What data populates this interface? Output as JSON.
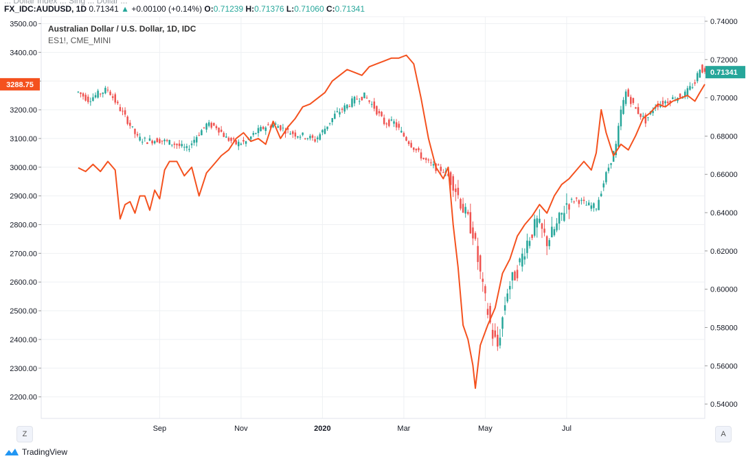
{
  "header": {
    "truncated_text": "... Dollar Index ... Sing ... Dollar ...",
    "symbol": "FX_IDC:AUDUSD, 1D",
    "last": "0.71341",
    "arrow": "▲",
    "change": "+0.00100 (+0.14%)",
    "o_label": "O:",
    "o_value": "0.71239",
    "h_label": "H:",
    "h_value": "0.71376",
    "l_label": "L:",
    "l_value": "0.71060",
    "c_label": "C:",
    "c_value": "0.71341"
  },
  "legend": {
    "title": "Australian Dollar / U.S. Dollar, 1D, IDC",
    "compare": "ES1!, CME_MINI"
  },
  "footer": {
    "brand": "TradingView",
    "left_button": "Z",
    "right_button": "A"
  },
  "colors": {
    "up": "#26a69a",
    "down": "#ef5350",
    "compare": "#f4511e",
    "grid": "#eef0f3"
  },
  "chart_data": {
    "type": "line",
    "x_ticks": [
      "Sep",
      "Nov",
      "2020",
      "Mar",
      "May",
      "Jul"
    ],
    "left_axis": {
      "ticks": [
        "3500.00",
        "3400.00",
        "3300.00",
        "3200.00",
        "3100.00",
        "3000.00",
        "2900.00",
        "2800.00",
        "2700.00",
        "2600.00",
        "2500.00",
        "2400.00",
        "2300.00",
        "2200.00"
      ],
      "range": [
        2125,
        3525
      ],
      "last_value_label": "3288.75"
    },
    "right_axis": {
      "ticks": [
        "0.74000",
        "0.72000",
        "0.70000",
        "0.68000",
        "0.66000",
        "0.64000",
        "0.62000",
        "0.60000",
        "0.58000",
        "0.56000",
        "0.54000"
      ],
      "range": [
        0.5325,
        0.7425
      ],
      "last_value_label": "0.71341"
    },
    "series": [
      {
        "name": "Australian Dollar / U.S. Dollar, 1D, IDC",
        "style": "candles",
        "axis": "right",
        "close_path": [
          [
            0,
            0.703
          ],
          [
            4,
            0.699
          ],
          [
            8,
            0.702
          ],
          [
            12,
            0.7045
          ],
          [
            16,
            0.696
          ],
          [
            20,
            0.688
          ],
          [
            24,
            0.679
          ],
          [
            28,
            0.6775
          ],
          [
            32,
            0.678
          ],
          [
            36,
            0.677
          ],
          [
            40,
            0.6755
          ],
          [
            44,
            0.673
          ],
          [
            48,
            0.68
          ],
          [
            52,
            0.686
          ],
          [
            56,
            0.685
          ],
          [
            60,
            0.679
          ],
          [
            64,
            0.676
          ],
          [
            68,
            0.677
          ],
          [
            72,
            0.682
          ],
          [
            76,
            0.685
          ],
          [
            80,
            0.686
          ],
          [
            84,
            0.683
          ],
          [
            88,
            0.681
          ],
          [
            92,
            0.68
          ],
          [
            96,
            0.678
          ],
          [
            100,
            0.684
          ],
          [
            104,
            0.691
          ],
          [
            108,
            0.695
          ],
          [
            112,
            0.699
          ],
          [
            116,
            0.701
          ],
          [
            120,
            0.695
          ],
          [
            124,
            0.687
          ],
          [
            128,
            0.687
          ],
          [
            132,
            0.68
          ],
          [
            136,
            0.674
          ],
          [
            140,
            0.668
          ],
          [
            144,
            0.664
          ],
          [
            148,
            0.662
          ],
          [
            152,
            0.656
          ],
          [
            156,
            0.642
          ],
          [
            160,
            0.63
          ],
          [
            164,
            0.6
          ],
          [
            168,
            0.576
          ],
          [
            170,
            0.57
          ],
          [
            174,
            0.6
          ],
          [
            178,
            0.61
          ],
          [
            182,
            0.625
          ],
          [
            186,
            0.635
          ],
          [
            190,
            0.625
          ],
          [
            194,
            0.633
          ],
          [
            198,
            0.645
          ],
          [
            202,
            0.647
          ],
          [
            206,
            0.644
          ],
          [
            210,
            0.643
          ],
          [
            214,
            0.66
          ],
          [
            218,
            0.675
          ],
          [
            220,
            0.693
          ],
          [
            222,
            0.703
          ],
          [
            226,
            0.694
          ],
          [
            230,
            0.688
          ],
          [
            234,
            0.696
          ],
          [
            238,
            0.698
          ],
          [
            242,
            0.7
          ],
          [
            246,
            0.702
          ],
          [
            250,
            0.708
          ],
          [
            252,
            0.716
          ],
          [
            254,
            0.713
          ]
        ]
      },
      {
        "name": "ES1!, CME_MINI",
        "style": "line",
        "axis": "left",
        "values": [
          [
            0,
            2998
          ],
          [
            3,
            2985
          ],
          [
            6,
            3010
          ],
          [
            9,
            2985
          ],
          [
            12,
            3020
          ],
          [
            15,
            2990
          ],
          [
            17,
            2820
          ],
          [
            19,
            2870
          ],
          [
            21,
            2880
          ],
          [
            23,
            2840
          ],
          [
            25,
            2900
          ],
          [
            27,
            2900
          ],
          [
            29,
            2850
          ],
          [
            31,
            2920
          ],
          [
            33,
            2890
          ],
          [
            35,
            2990
          ],
          [
            37,
            3020
          ],
          [
            40,
            3020
          ],
          [
            43,
            2970
          ],
          [
            46,
            3000
          ],
          [
            49,
            2900
          ],
          [
            52,
            2980
          ],
          [
            55,
            3010
          ],
          [
            58,
            3040
          ],
          [
            61,
            3060
          ],
          [
            64,
            3100
          ],
          [
            67,
            3120
          ],
          [
            70,
            3090
          ],
          [
            73,
            3100
          ],
          [
            76,
            3080
          ],
          [
            79,
            3160
          ],
          [
            82,
            3100
          ],
          [
            85,
            3140
          ],
          [
            88,
            3170
          ],
          [
            91,
            3210
          ],
          [
            94,
            3220
          ],
          [
            97,
            3240
          ],
          [
            100,
            3260
          ],
          [
            103,
            3300
          ],
          [
            106,
            3320
          ],
          [
            109,
            3340
          ],
          [
            112,
            3330
          ],
          [
            115,
            3320
          ],
          [
            118,
            3350
          ],
          [
            121,
            3360
          ],
          [
            124,
            3370
          ],
          [
            127,
            3380
          ],
          [
            130,
            3380
          ],
          [
            133,
            3390
          ],
          [
            136,
            3360
          ],
          [
            139,
            3240
          ],
          [
            142,
            3100
          ],
          [
            145,
            3000
          ],
          [
            148,
            2960
          ],
          [
            150,
            3000
          ],
          [
            152,
            2800
          ],
          [
            154,
            2650
          ],
          [
            156,
            2450
          ],
          [
            158,
            2400
          ],
          [
            160,
            2310
          ],
          [
            161,
            2230
          ],
          [
            163,
            2380
          ],
          [
            166,
            2450
          ],
          [
            169,
            2510
          ],
          [
            172,
            2630
          ],
          [
            175,
            2680
          ],
          [
            178,
            2760
          ],
          [
            181,
            2800
          ],
          [
            184,
            2830
          ],
          [
            187,
            2870
          ],
          [
            190,
            2840
          ],
          [
            193,
            2900
          ],
          [
            196,
            2940
          ],
          [
            199,
            2960
          ],
          [
            202,
            2990
          ],
          [
            205,
            3020
          ],
          [
            208,
            2990
          ],
          [
            210,
            3050
          ],
          [
            212,
            3200
          ],
          [
            214,
            3120
          ],
          [
            217,
            3040
          ],
          [
            220,
            3080
          ],
          [
            223,
            3060
          ],
          [
            226,
            3110
          ],
          [
            229,
            3170
          ],
          [
            232,
            3190
          ],
          [
            235,
            3220
          ],
          [
            238,
            3210
          ],
          [
            241,
            3230
          ],
          [
            244,
            3240
          ],
          [
            247,
            3250
          ],
          [
            250,
            3230
          ],
          [
            252,
            3260
          ],
          [
            254,
            3288.75
          ]
        ]
      }
    ],
    "x_tick_positions": [
      33,
      66,
      99,
      132,
      165,
      198
    ],
    "x_range": [
      -15,
      254
    ],
    "grid": true
  }
}
